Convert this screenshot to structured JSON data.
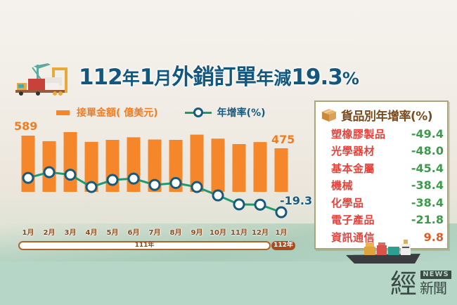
{
  "title": {
    "year_part": "112",
    "year_char": "年",
    "month_part": "1",
    "month_char": "月",
    "main": "外銷訂單",
    "change_label": "年減",
    "value": "19.3",
    "pct_sign": "%"
  },
  "legend": {
    "bar_label": "接單金額( 億美元)",
    "line_label": "年增率(%)"
  },
  "annotations": {
    "first_bar": "589",
    "last_bar": "475",
    "last_rate": "-19.3"
  },
  "axis": {
    "months": [
      "1月",
      "2月",
      "3月",
      "4月",
      "5月",
      "6月",
      "7月",
      "8月",
      "9月",
      "10月",
      "11月",
      "12月",
      "1月"
    ],
    "year_111": "111年",
    "year_112": "112年"
  },
  "panel": {
    "title": "貨品別年增率(%)",
    "rows": [
      {
        "name": "塑橡膠製品",
        "value": "-49.4"
      },
      {
        "name": "光學器材",
        "value": "-48.0"
      },
      {
        "name": "基本金屬",
        "value": "-45.4"
      },
      {
        "name": "機械",
        "value": "-38.4"
      },
      {
        "name": "化學品",
        "value": "-38.4"
      },
      {
        "name": "電子產品",
        "value": "-21.8"
      },
      {
        "name": "資訊通信",
        "value": "9.8"
      }
    ]
  },
  "logo": {
    "kanji": "經",
    "news": "NEWS",
    "xin": "新聞"
  },
  "colors": {
    "title": "#14577e",
    "bar": "#f5862a",
    "line": "#1f9a6e",
    "marker": "#165a7d",
    "negative": "#3e9a4b",
    "positive": "#e55a1e",
    "category": "#e6423c"
  },
  "chart_data": {
    "type": "bar+line",
    "title": "112年1月外銷訂單年減19.3%",
    "categories": [
      "111年1月",
      "111年2月",
      "111年3月",
      "111年4月",
      "111年5月",
      "111年6月",
      "111年7月",
      "111年8月",
      "111年9月",
      "111年10月",
      "111年11月",
      "111年12月",
      "112年1月"
    ],
    "series": [
      {
        "name": "接單金額(億美元)",
        "type": "bar",
        "values": [
          589,
          539,
          621,
          533,
          551,
          574,
          554,
          551,
          598,
          562,
          513,
          531,
          475
        ],
        "labeled": {
          "0": 589,
          "12": 475
        }
      },
      {
        "name": "年增率(%)",
        "type": "line",
        "values": [
          14.0,
          19.5,
          17.0,
          5.1,
          12.0,
          13.3,
          7.2,
          9.0,
          5.1,
          -3.0,
          -11.7,
          -12.0,
          -19.3
        ],
        "labeled": {
          "12": -19.3
        }
      }
    ],
    "legend_position": "top",
    "grid": false,
    "side_table": {
      "title": "貨品別年增率(%)",
      "rows": [
        [
          "塑橡膠製品",
          -49.4
        ],
        [
          "光學器材",
          -48.0
        ],
        [
          "基本金屬",
          -45.4
        ],
        [
          "機械",
          -38.4
        ],
        [
          "化學品",
          -38.4
        ],
        [
          "電子產品",
          -21.8
        ],
        [
          "資訊通信",
          9.8
        ]
      ]
    }
  }
}
